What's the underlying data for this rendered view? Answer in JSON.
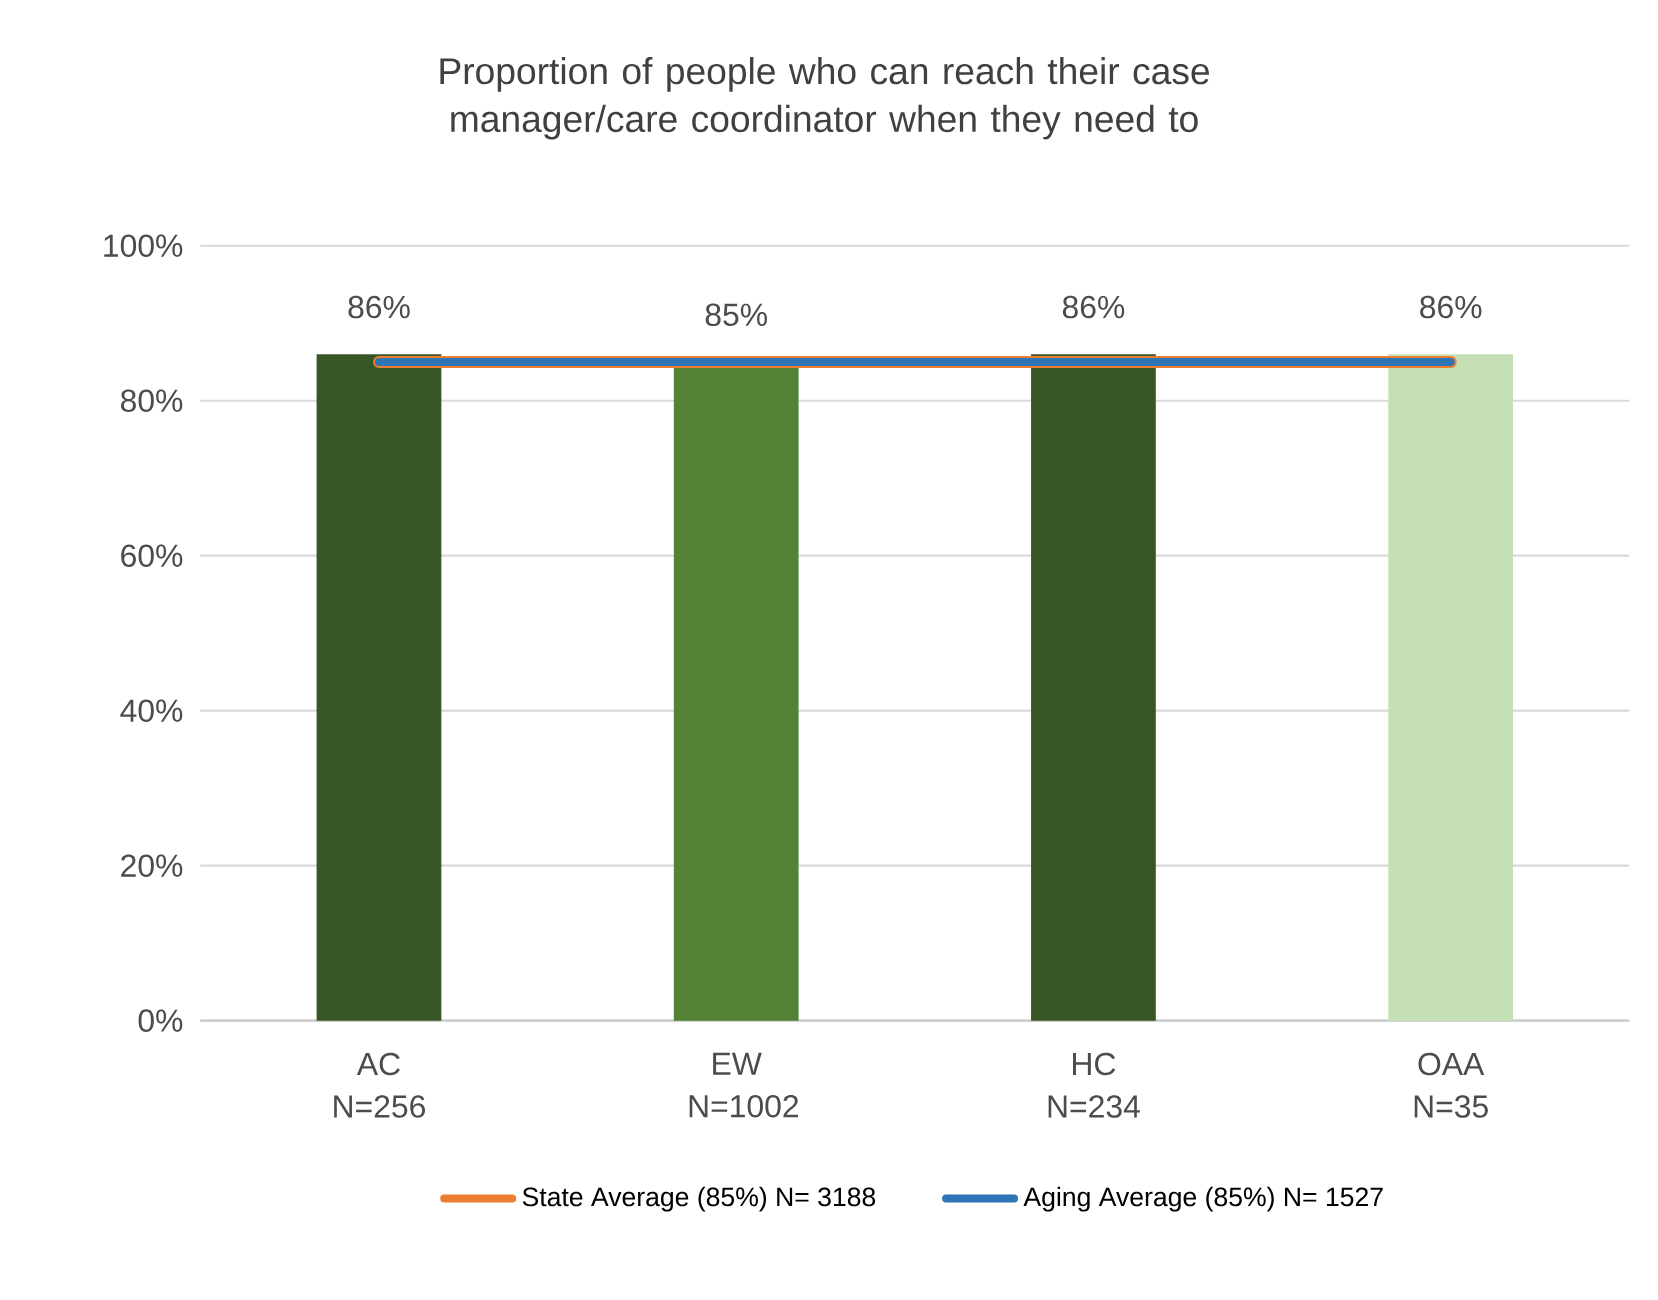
{
  "chart_data": {
    "type": "bar",
    "title": "Proportion of people who can reach their case manager/care coordinator when they need to",
    "categories": [
      "AC N=256",
      "EW N=1002",
      "HC N=234",
      "OAA N=35"
    ],
    "series": [
      {
        "values": [
          86,
          85,
          86,
          86
        ],
        "colors": [
          "#375623",
          "#548235",
          "#375623",
          "#c5e0b4"
        ],
        "value_labels": [
          "86%",
          "85%",
          "86%",
          "86%"
        ]
      },
      {
        "type": "line",
        "name": "State Average (85%) N= 3188",
        "color": "#ed7d31",
        "values": [
          85,
          85,
          85,
          85
        ]
      },
      {
        "type": "line",
        "name": "Aging Average (85%) N= 1527",
        "color": "#2e75b6",
        "values": [
          85,
          85,
          85,
          85
        ]
      }
    ],
    "ylim": [
      0,
      100
    ],
    "yticks": [
      {
        "value": 0,
        "label": "0%"
      },
      {
        "value": 20,
        "label": "20%"
      },
      {
        "value": 40,
        "label": "40%"
      },
      {
        "value": 60,
        "label": "60%"
      },
      {
        "value": 80,
        "label": "80%"
      },
      {
        "value": 100,
        "label": "100%"
      }
    ],
    "grid": "y",
    "legend": "bottom",
    "marker": "none",
    "line_style": "solid"
  }
}
